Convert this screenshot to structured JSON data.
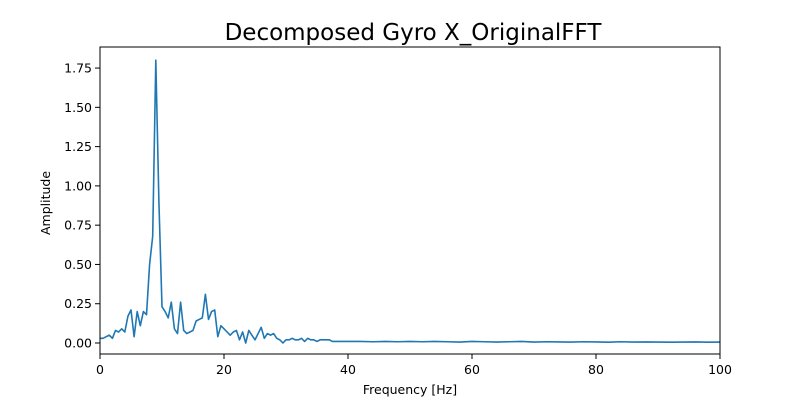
{
  "chart_data": {
    "type": "line",
    "title": "Decomposed Gyro X_OriginalFFT",
    "x_label": "Frequency [Hz]",
    "y_label": "Amplitude",
    "xlim": [
      0,
      100
    ],
    "ylim": [
      -0.07,
      1.884
    ],
    "xticks": [
      0,
      20,
      40,
      60,
      80,
      100
    ],
    "yticks": [
      {
        "value": 0,
        "label": "0.00"
      },
      {
        "value": 0.25,
        "label": "0.25"
      },
      {
        "value": 0.5,
        "label": "0.50"
      },
      {
        "value": 0.75,
        "label": "0.75"
      },
      {
        "value": 1,
        "label": "1.00"
      },
      {
        "value": 1.25,
        "label": "1.25"
      },
      {
        "value": 1.5,
        "label": "1.50"
      },
      {
        "value": 1.75,
        "label": "1.75"
      }
    ],
    "grid": false,
    "series": [
      {
        "color": "#1f77b4",
        "x": [
          0,
          0.5,
          1,
          1.5,
          2,
          2.5,
          3,
          3.5,
          4,
          4.5,
          5,
          5.5,
          6,
          6.5,
          7,
          7.5,
          8,
          8.5,
          9,
          9.5,
          10,
          10.5,
          11,
          11.5,
          12,
          12.5,
          13,
          13.5,
          14,
          14.5,
          15,
          15.5,
          16,
          16.5,
          17,
          17.5,
          18,
          18.5,
          19,
          19.5,
          20,
          20.5,
          21,
          21.5,
          22,
          22.5,
          23,
          23.5,
          24,
          24.5,
          25,
          25.5,
          26,
          26.5,
          27,
          27.5,
          28,
          28.5,
          29,
          29.5,
          30,
          30.5,
          31,
          31.5,
          32,
          32.5,
          33,
          33.5,
          34,
          34.5,
          35,
          35.5,
          36,
          36.5,
          37,
          37.5,
          38,
          38.5,
          39,
          39.5,
          40,
          42,
          44,
          46,
          48,
          50,
          52,
          54,
          56,
          58,
          60,
          62,
          64,
          66,
          68,
          70,
          72,
          74,
          76,
          78,
          80,
          82,
          84,
          86,
          88,
          90,
          92,
          94,
          96,
          98,
          100
        ],
        "values": [
          0.03,
          0.03,
          0.04,
          0.05,
          0.03,
          0.08,
          0.07,
          0.09,
          0.07,
          0.17,
          0.21,
          0.04,
          0.2,
          0.11,
          0.2,
          0.18,
          0.5,
          0.68,
          1.8,
          0.9,
          0.23,
          0.2,
          0.16,
          0.26,
          0.09,
          0.06,
          0.26,
          0.08,
          0.06,
          0.07,
          0.08,
          0.14,
          0.15,
          0.16,
          0.31,
          0.15,
          0.2,
          0.21,
          0.04,
          0.11,
          0.09,
          0.07,
          0.05,
          0.07,
          0.08,
          0.02,
          0.07,
          0.0,
          0.08,
          0.05,
          0.02,
          0.06,
          0.1,
          0.03,
          0.06,
          0.05,
          0.06,
          0.03,
          0.02,
          0.0,
          0.02,
          0.02,
          0.03,
          0.02,
          0.02,
          0.03,
          0.01,
          0.03,
          0.02,
          0.02,
          0.01,
          0.02,
          0.02,
          0.02,
          0.02,
          0.01,
          0.01,
          0.01,
          0.01,
          0.01,
          0.01,
          0.01,
          0.008,
          0.01,
          0.008,
          0.01,
          0.008,
          0.01,
          0.008,
          0.006,
          0.01,
          0.008,
          0.006,
          0.008,
          0.01,
          0.006,
          0.008,
          0.007,
          0.006,
          0.008,
          0.007,
          0.005,
          0.008,
          0.006,
          0.007,
          0.006,
          0.005,
          0.006,
          0.007,
          0.005,
          0.006
        ]
      }
    ]
  }
}
